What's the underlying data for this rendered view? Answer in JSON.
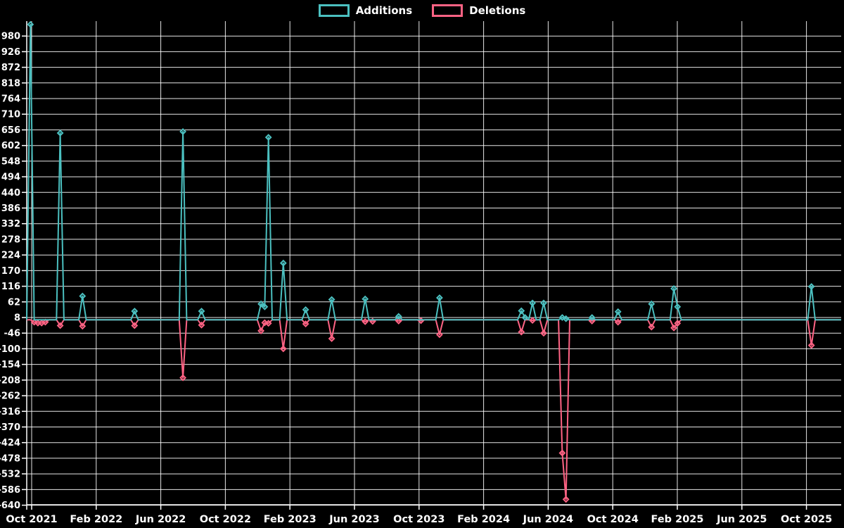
{
  "chart_data": {
    "type": "line",
    "title": "",
    "legend": [
      "Additions",
      "Deletions"
    ],
    "legend_position": "top-center",
    "grid": true,
    "background_color": "#000000",
    "text_color": "#ffffff",
    "x_axis": {
      "labels": [
        "Oct 2021",
        "Feb 2022",
        "Jun 2022",
        "Oct 2022",
        "Feb 2023",
        "Jun 2023",
        "Oct 2023",
        "Feb 2024",
        "Jun 2024",
        "Oct 2024",
        "Feb 2025",
        "Jun 2025",
        "Oct 2025"
      ],
      "label_interval_months": 4
    },
    "y_axis": {
      "min": -640,
      "max": 1024,
      "tick_step": 54,
      "ticks": [
        980,
        926,
        872,
        818,
        764,
        710,
        656,
        602,
        548,
        494,
        440,
        386,
        332,
        278,
        224,
        170,
        116,
        62,
        8,
        -46,
        -100,
        -154,
        -208,
        -262,
        -316,
        -370,
        -424,
        -478,
        -532,
        -586,
        -640
      ]
    },
    "series": [
      {
        "name": "Additions",
        "color": "#4bc0c0",
        "value_key": "additions"
      },
      {
        "name": "Deletions",
        "color": "#ff6384",
        "value_key": "deletions"
      }
    ],
    "weeks_total": 220,
    "start_week": "2021-10-10",
    "default_value": 0,
    "events": [
      {
        "week": 1,
        "date": "2021-10-17",
        "additions": 1020,
        "deletions": 0
      },
      {
        "week": 2,
        "date": "2021-10-24",
        "additions": 0,
        "deletions": -8
      },
      {
        "week": 3,
        "date": "2021-10-31",
        "additions": 0,
        "deletions": -11
      },
      {
        "week": 4,
        "date": "2021-11-07",
        "additions": 0,
        "deletions": -11
      },
      {
        "week": 5,
        "date": "2021-11-14",
        "additions": 0,
        "deletions": -8
      },
      {
        "week": 9,
        "date": "2021-12-12",
        "additions": 645,
        "deletions": -20
      },
      {
        "week": 15,
        "date": "2022-01-23",
        "additions": 82,
        "deletions": -22
      },
      {
        "week": 29,
        "date": "2022-05-01",
        "additions": 30,
        "deletions": -20
      },
      {
        "week": 42,
        "date": "2022-07-31",
        "additions": 650,
        "deletions": -200
      },
      {
        "week": 47,
        "date": "2022-09-04",
        "additions": 30,
        "deletions": -18
      },
      {
        "week": 63,
        "date": "2022-12-25",
        "additions": 55,
        "deletions": -38
      },
      {
        "week": 64,
        "date": "2023-01-01",
        "additions": 45,
        "deletions": -10
      },
      {
        "week": 65,
        "date": "2023-01-08",
        "additions": 630,
        "deletions": -12
      },
      {
        "week": 69,
        "date": "2023-02-05",
        "additions": 196,
        "deletions": -100
      },
      {
        "week": 75,
        "date": "2023-03-19",
        "additions": 35,
        "deletions": -14
      },
      {
        "week": 82,
        "date": "2023-05-07",
        "additions": 70,
        "deletions": -65
      },
      {
        "week": 91,
        "date": "2023-07-09",
        "additions": 72,
        "deletions": -6
      },
      {
        "week": 93,
        "date": "2023-07-23",
        "additions": 0,
        "deletions": -5
      },
      {
        "week": 100,
        "date": "2023-09-10",
        "additions": 12,
        "deletions": -4
      },
      {
        "week": 106,
        "date": "2023-10-22",
        "additions": 0,
        "deletions": -3
      },
      {
        "week": 111,
        "date": "2023-11-26",
        "additions": 76,
        "deletions": -51
      },
      {
        "week": 133,
        "date": "2024-04-28",
        "additions": 31,
        "deletions": -42
      },
      {
        "week": 134,
        "date": "2024-05-05",
        "additions": 8,
        "deletions": 0
      },
      {
        "week": 136,
        "date": "2024-05-19",
        "additions": 58,
        "deletions": -2
      },
      {
        "week": 139,
        "date": "2024-06-09",
        "additions": 58,
        "deletions": -46
      },
      {
        "week": 144,
        "date": "2024-07-14",
        "additions": 8,
        "deletions": -460
      },
      {
        "week": 145,
        "date": "2024-07-21",
        "additions": 4,
        "deletions": -620
      },
      {
        "week": 152,
        "date": "2024-09-08",
        "additions": 8,
        "deletions": -4
      },
      {
        "week": 159,
        "date": "2024-10-27",
        "additions": 28,
        "deletions": -8
      },
      {
        "week": 168,
        "date": "2024-12-29",
        "additions": 55,
        "deletions": -25
      },
      {
        "week": 174,
        "date": "2025-02-09",
        "additions": 108,
        "deletions": -28
      },
      {
        "week": 175,
        "date": "2025-02-16",
        "additions": 45,
        "deletions": -12
      },
      {
        "week": 211,
        "date": "2025-10-26",
        "additions": 115,
        "deletions": -88
      }
    ]
  }
}
